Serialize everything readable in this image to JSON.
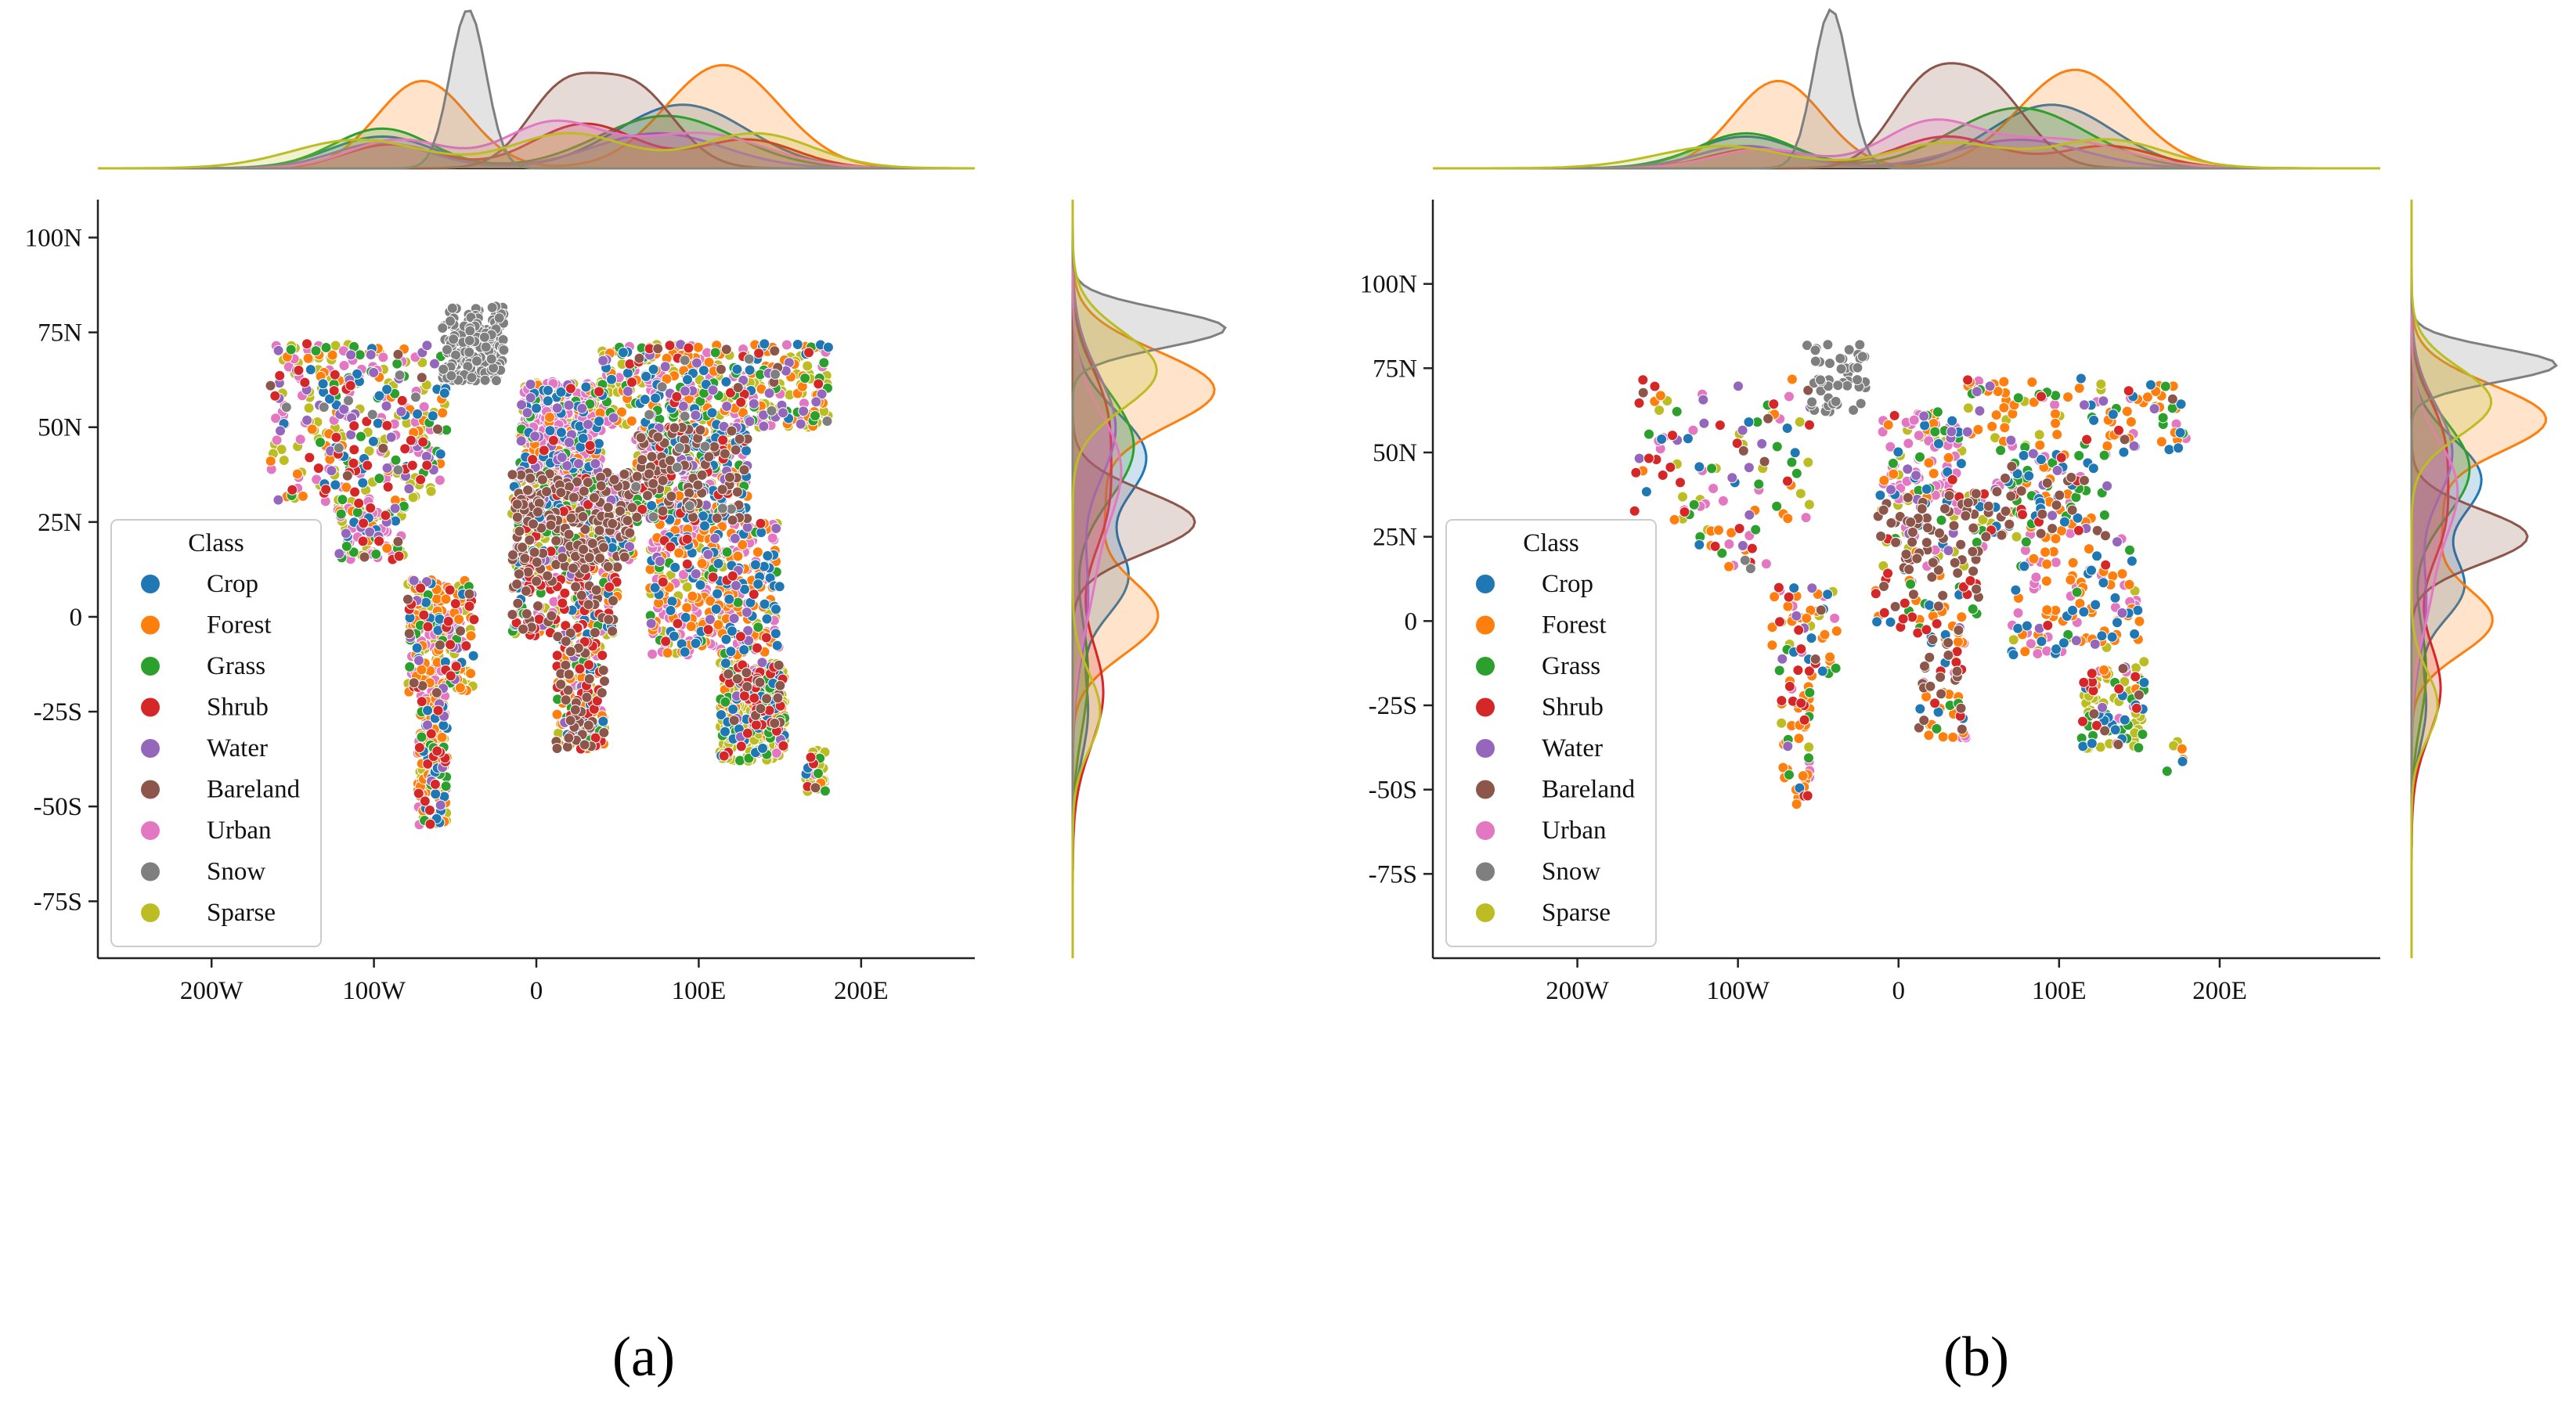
{
  "chart_data": [
    {
      "type": "scatter",
      "panel_label": "(a)",
      "title": "",
      "xlabel": "",
      "ylabel": "",
      "xlim": [
        -270,
        270
      ],
      "ylim": [
        -90,
        110
      ],
      "x_ticks": [
        -200,
        -100,
        0,
        100,
        200
      ],
      "x_tick_labels": [
        "200W",
        "100W",
        "0",
        "100E",
        "200E"
      ],
      "y_ticks": [
        -75,
        -50,
        -25,
        0,
        25,
        50,
        75,
        100
      ],
      "y_tick_labels": [
        "-75S",
        "-50S",
        "-25S",
        "0",
        "25N",
        "50N",
        "75N",
        "100N"
      ],
      "grid": false,
      "marginals": "kde (top: longitude density, right: latitude density)",
      "legend": {
        "title": "Class",
        "placement": "lower-left",
        "entries": [
          "Crop",
          "Forest",
          "Grass",
          "Shrub",
          "Water",
          "Bareland",
          "Urban",
          "Snow",
          "Sparse"
        ]
      },
      "series": [
        {
          "name": "Crop",
          "color": "#1f77b4",
          "region_mix": {
            "na": 0.08,
            "sa": 0.08,
            "eu": 0.1,
            "af": 0.08,
            "me": 0.06,
            "ru": 0.1,
            "as": 0.16,
            "sea": 0.16,
            "aus": 0.08,
            "gl": 0.0
          }
        },
        {
          "name": "Forest",
          "color": "#ff7f0e",
          "region_mix": {
            "na": 0.1,
            "sa": 0.3,
            "eu": 0.08,
            "af": 0.16,
            "me": 0.02,
            "ru": 0.2,
            "as": 0.1,
            "sea": 0.3,
            "aus": 0.06,
            "gl": 0.0
          }
        },
        {
          "name": "Grass",
          "color": "#2ca02c",
          "region_mix": {
            "na": 0.1,
            "sa": 0.06,
            "eu": 0.06,
            "af": 0.1,
            "me": 0.08,
            "ru": 0.1,
            "as": 0.12,
            "sea": 0.04,
            "aus": 0.08,
            "gl": 0.0
          }
        },
        {
          "name": "Shrub",
          "color": "#d62728",
          "region_mix": {
            "na": 0.1,
            "sa": 0.08,
            "eu": 0.02,
            "af": 0.2,
            "me": 0.04,
            "ru": 0.04,
            "as": 0.06,
            "sea": 0.04,
            "aus": 0.1,
            "gl": 0.0
          }
        },
        {
          "name": "Water",
          "color": "#9467bd",
          "region_mix": {
            "na": 0.1,
            "sa": 0.04,
            "eu": 0.06,
            "af": 0.04,
            "me": 0.04,
            "ru": 0.08,
            "as": 0.06,
            "sea": 0.04,
            "aus": 0.02,
            "gl": 0.0
          }
        },
        {
          "name": "Bareland",
          "color": "#8c564b",
          "region_mix": {
            "na": 0.02,
            "sa": 0.02,
            "eu": 0.0,
            "af": 0.2,
            "me": 0.36,
            "ru": 0.02,
            "as": 0.2,
            "sea": 0.0,
            "aus": 0.04,
            "gl": 0.0
          }
        },
        {
          "name": "Urban",
          "color": "#e377c2",
          "region_mix": {
            "na": 0.22,
            "sa": 0.16,
            "eu": 0.4,
            "af": 0.08,
            "me": 0.14,
            "ru": 0.12,
            "as": 0.16,
            "sea": 0.3,
            "aus": 0.04,
            "gl": 0.0
          }
        },
        {
          "name": "Snow",
          "color": "#7f7f7f",
          "region_mix": {
            "na": 0.02,
            "sa": 0.0,
            "eu": 0.0,
            "af": 0.0,
            "me": 0.0,
            "ru": 0.02,
            "as": 0.02,
            "sea": 0.0,
            "aus": 0.0,
            "gl": 1.0
          }
        },
        {
          "name": "Sparse",
          "color": "#bcbd22",
          "region_mix": {
            "na": 0.26,
            "sa": 0.2,
            "eu": 0.28,
            "af": 0.14,
            "me": 0.36,
            "ru": 0.32,
            "as": 0.12,
            "sea": 0.12,
            "aus": 0.58,
            "gl": 0.0
          }
        }
      ],
      "sample_density": 1.0,
      "kde_lon": [
        {
          "name": "Crop",
          "peaks": [
            [
              -95,
              0.2,
              32
            ],
            [
              90,
              0.4,
              40
            ]
          ]
        },
        {
          "name": "Forest",
          "peaks": [
            [
              -70,
              0.55,
              28
            ],
            [
              115,
              0.65,
              35
            ]
          ]
        },
        {
          "name": "Grass",
          "peaks": [
            [
              -95,
              0.25,
              30
            ],
            [
              80,
              0.33,
              42
            ]
          ]
        },
        {
          "name": "Shrub",
          "peaks": [
            [
              -90,
              0.15,
              28
            ],
            [
              30,
              0.28,
              32
            ],
            [
              130,
              0.18,
              30
            ]
          ]
        },
        {
          "name": "Water",
          "peaks": [
            [
              -95,
              0.16,
              30
            ],
            [
              75,
              0.22,
              40
            ]
          ]
        },
        {
          "name": "Bareland",
          "peaks": [
            [
              15,
              0.45,
              22
            ],
            [
              60,
              0.5,
              25
            ]
          ]
        },
        {
          "name": "Urban",
          "peaks": [
            [
              -85,
              0.18,
              30
            ],
            [
              10,
              0.28,
              30
            ],
            [
              100,
              0.22,
              40
            ]
          ]
        },
        {
          "name": "Snow",
          "peaks": [
            [
              -42,
              1.0,
              11
            ]
          ]
        },
        {
          "name": "Sparse",
          "peaks": [
            [
              -110,
              0.18,
              40
            ],
            [
              20,
              0.22,
              35
            ],
            [
              135,
              0.22,
              35
            ]
          ]
        }
      ],
      "kde_lat": [
        {
          "name": "Crop",
          "peaks": [
            [
              10,
              0.35,
              10
            ],
            [
              42,
              0.48,
              12
            ],
            [
              -25,
              0.1,
              12
            ]
          ]
        },
        {
          "name": "Forest",
          "peaks": [
            [
              60,
              0.92,
              10
            ],
            [
              0,
              0.55,
              10
            ],
            [
              30,
              0.2,
              12
            ]
          ]
        },
        {
          "name": "Grass",
          "peaks": [
            [
              45,
              0.4,
              14
            ],
            [
              -15,
              0.1,
              15
            ]
          ]
        },
        {
          "name": "Shrub",
          "peaks": [
            [
              30,
              0.22,
              14
            ],
            [
              -20,
              0.2,
              14
            ],
            [
              55,
              0.18,
              12
            ]
          ]
        },
        {
          "name": "Water",
          "peaks": [
            [
              50,
              0.28,
              14
            ],
            [
              5,
              0.1,
              15
            ]
          ]
        },
        {
          "name": "Bareland",
          "peaks": [
            [
              25,
              0.8,
              8
            ]
          ]
        },
        {
          "name": "Urban",
          "peaks": [
            [
              40,
              0.3,
              14
            ],
            [
              10,
              0.12,
              15
            ]
          ]
        },
        {
          "name": "Snow",
          "peaks": [
            [
              76,
              1.0,
              5
            ]
          ]
        },
        {
          "name": "Sparse",
          "peaks": [
            [
              65,
              0.55,
              10
            ],
            [
              -25,
              0.18,
              10
            ]
          ]
        }
      ]
    },
    {
      "type": "scatter",
      "panel_label": "(b)",
      "title": "",
      "xlabel": "",
      "ylabel": "",
      "xlim": [
        -290,
        300
      ],
      "ylim": [
        -100,
        125
      ],
      "x_ticks": [
        -200,
        -100,
        0,
        100,
        200
      ],
      "x_tick_labels": [
        "200W",
        "100W",
        "0",
        "100E",
        "200E"
      ],
      "y_ticks": [
        -75,
        -50,
        -25,
        0,
        25,
        50,
        75,
        100
      ],
      "y_tick_labels": [
        "-75S",
        "-50S",
        "-25S",
        "0",
        "25N",
        "50N",
        "75N",
        "100N"
      ],
      "grid": false,
      "marginals": "kde (top: longitude density, right: latitude density)",
      "legend": {
        "title": "Class",
        "placement": "lower-left",
        "entries": [
          "Crop",
          "Forest",
          "Grass",
          "Shrub",
          "Water",
          "Bareland",
          "Urban",
          "Snow",
          "Sparse"
        ]
      },
      "series": [
        {
          "name": "Crop",
          "color": "#1f77b4",
          "region_mix": {
            "na": 0.08,
            "sa": 0.08,
            "eu": 0.08,
            "af": 0.1,
            "me": 0.08,
            "ru": 0.1,
            "as": 0.18,
            "sea": 0.22,
            "aus": 0.14,
            "gl": 0.0
          }
        },
        {
          "name": "Forest",
          "color": "#ff7f0e",
          "region_mix": {
            "na": 0.14,
            "sa": 0.4,
            "eu": 0.1,
            "af": 0.26,
            "me": 0.02,
            "ru": 0.42,
            "as": 0.14,
            "sea": 0.4,
            "aus": 0.08,
            "gl": 0.0
          }
        },
        {
          "name": "Grass",
          "color": "#2ca02c",
          "region_mix": {
            "na": 0.14,
            "sa": 0.08,
            "eu": 0.08,
            "af": 0.1,
            "me": 0.06,
            "ru": 0.14,
            "as": 0.2,
            "sea": 0.04,
            "aus": 0.14,
            "gl": 0.0
          }
        },
        {
          "name": "Shrub",
          "color": "#d62728",
          "region_mix": {
            "na": 0.18,
            "sa": 0.14,
            "eu": 0.02,
            "af": 0.18,
            "me": 0.06,
            "ru": 0.04,
            "as": 0.06,
            "sea": 0.02,
            "aus": 0.1,
            "gl": 0.0
          }
        },
        {
          "name": "Water",
          "color": "#9467bd",
          "region_mix": {
            "na": 0.1,
            "sa": 0.04,
            "eu": 0.06,
            "af": 0.02,
            "me": 0.04,
            "ru": 0.08,
            "as": 0.06,
            "sea": 0.04,
            "aus": 0.02,
            "gl": 0.0
          }
        },
        {
          "name": "Bareland",
          "color": "#8c564b",
          "region_mix": {
            "na": 0.04,
            "sa": 0.02,
            "eu": 0.0,
            "af": 0.26,
            "me": 0.5,
            "ru": 0.02,
            "as": 0.18,
            "sea": 0.0,
            "aus": 0.04,
            "gl": 0.0
          }
        },
        {
          "name": "Urban",
          "color": "#e377c2",
          "region_mix": {
            "na": 0.16,
            "sa": 0.1,
            "eu": 0.46,
            "af": 0.06,
            "me": 0.1,
            "ru": 0.08,
            "as": 0.14,
            "sea": 0.24,
            "aus": 0.04,
            "gl": 0.0
          }
        },
        {
          "name": "Snow",
          "color": "#7f7f7f",
          "region_mix": {
            "na": 0.02,
            "sa": 0.0,
            "eu": 0.0,
            "af": 0.0,
            "me": 0.0,
            "ru": 0.0,
            "as": 0.0,
            "sea": 0.0,
            "aus": 0.0,
            "gl": 1.0
          }
        },
        {
          "name": "Sparse",
          "color": "#bcbd22",
          "region_mix": {
            "na": 0.14,
            "sa": 0.06,
            "eu": 0.1,
            "af": 0.02,
            "me": 0.14,
            "ru": 0.12,
            "as": 0.04,
            "sea": 0.04,
            "aus": 0.4,
            "gl": 0.0
          }
        }
      ],
      "sample_density": 0.28,
      "kde_lon": [
        {
          "name": "Crop",
          "peaks": [
            [
              -95,
              0.2,
              32
            ],
            [
              95,
              0.4,
              38
            ]
          ]
        },
        {
          "name": "Forest",
          "peaks": [
            [
              -75,
              0.55,
              28
            ],
            [
              110,
              0.62,
              35
            ]
          ]
        },
        {
          "name": "Grass",
          "peaks": [
            [
              -95,
              0.22,
              30
            ],
            [
              75,
              0.38,
              42
            ]
          ]
        },
        {
          "name": "Shrub",
          "peaks": [
            [
              -90,
              0.12,
              28
            ],
            [
              30,
              0.2,
              32
            ],
            [
              130,
              0.14,
              30
            ]
          ]
        },
        {
          "name": "Water",
          "peaks": [
            [
              -95,
              0.14,
              30
            ],
            [
              75,
              0.18,
              40
            ]
          ]
        },
        {
          "name": "Bareland",
          "peaks": [
            [
              15,
              0.45,
              22
            ],
            [
              55,
              0.5,
              25
            ]
          ]
        },
        {
          "name": "Urban",
          "peaks": [
            [
              -85,
              0.12,
              30
            ],
            [
              20,
              0.28,
              30
            ],
            [
              100,
              0.18,
              40
            ]
          ]
        },
        {
          "name": "Snow",
          "peaks": [
            [
              -42,
              1.0,
              11
            ]
          ]
        },
        {
          "name": "Sparse",
          "peaks": [
            [
              -110,
              0.14,
              40
            ],
            [
              30,
              0.16,
              35
            ],
            [
              130,
              0.18,
              35
            ]
          ]
        }
      ],
      "kde_lat": [
        {
          "name": "Crop",
          "peaks": [
            [
              10,
              0.35,
              10
            ],
            [
              42,
              0.48,
              12
            ],
            [
              -25,
              0.1,
              12
            ]
          ]
        },
        {
          "name": "Forest",
          "peaks": [
            [
              60,
              0.92,
              10
            ],
            [
              0,
              0.55,
              10
            ],
            [
              30,
              0.2,
              12
            ]
          ]
        },
        {
          "name": "Grass",
          "peaks": [
            [
              45,
              0.4,
              14
            ],
            [
              -15,
              0.1,
              15
            ]
          ]
        },
        {
          "name": "Shrub",
          "peaks": [
            [
              30,
              0.22,
              14
            ],
            [
              -20,
              0.2,
              14
            ],
            [
              55,
              0.18,
              12
            ]
          ]
        },
        {
          "name": "Water",
          "peaks": [
            [
              50,
              0.28,
              14
            ],
            [
              5,
              0.1,
              15
            ]
          ]
        },
        {
          "name": "Bareland",
          "peaks": [
            [
              25,
              0.8,
              8
            ]
          ]
        },
        {
          "name": "Urban",
          "peaks": [
            [
              40,
              0.3,
              14
            ],
            [
              10,
              0.12,
              15
            ]
          ]
        },
        {
          "name": "Snow",
          "peaks": [
            [
              76,
              1.0,
              5
            ]
          ]
        },
        {
          "name": "Sparse",
          "peaks": [
            [
              65,
              0.55,
              10
            ],
            [
              -25,
              0.18,
              10
            ]
          ]
        }
      ]
    }
  ]
}
